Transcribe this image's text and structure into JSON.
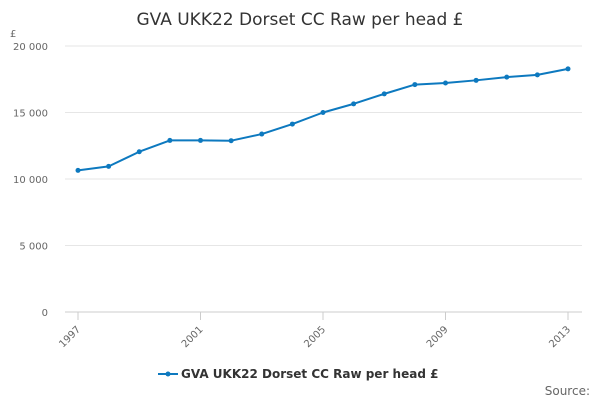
{
  "chart_data": {
    "type": "line",
    "title": "GVA UKK22 Dorset CC Raw per head £",
    "ylabel": "£",
    "xlabel": "",
    "ylim": [
      0,
      20000
    ],
    "yticks": [
      {
        "value": 0,
        "label": "0"
      },
      {
        "value": 5000,
        "label": "5 000"
      },
      {
        "value": 10000,
        "label": "10 000"
      },
      {
        "value": 15000,
        "label": "15 000"
      },
      {
        "value": 20000,
        "label": "20 000"
      }
    ],
    "xlim": [
      1997,
      2013
    ],
    "xticks": [
      {
        "value": 1997,
        "label": "1997"
      },
      {
        "value": 2001,
        "label": "2001"
      },
      {
        "value": 2005,
        "label": "2005"
      },
      {
        "value": 2009,
        "label": "2009"
      },
      {
        "value": 2013,
        "label": "2013"
      }
    ],
    "series": [
      {
        "name": "GVA UKK22 Dorset CC Raw per head £",
        "color": "#0d79bf",
        "x": [
          1997,
          1998,
          1999,
          2000,
          2001,
          2002,
          2003,
          2004,
          2005,
          2006,
          2007,
          2008,
          2009,
          2010,
          2011,
          2012,
          2013
        ],
        "values": [
          10650,
          10950,
          12050,
          12900,
          12900,
          12880,
          13380,
          14130,
          15000,
          15650,
          16400,
          17100,
          17220,
          17420,
          17660,
          17830,
          18280
        ]
      }
    ],
    "grid": true,
    "legend_position": "bottom"
  },
  "source_label": "Source:"
}
